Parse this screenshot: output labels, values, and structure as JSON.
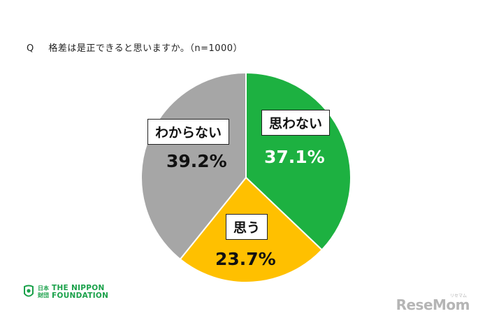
{
  "question": {
    "mark": "Q",
    "text": "格差は是正できると思いますか。（n=1000）"
  },
  "chart_data": {
    "type": "pie",
    "title": "",
    "start_angle_deg": 0,
    "direction": "clockwise",
    "slices": [
      {
        "label": "思わない",
        "value": 37.1,
        "value_label": "37.1%",
        "color": "#1db141",
        "value_color": "#ffffff"
      },
      {
        "label": "思う",
        "value": 23.7,
        "value_label": "23.7%",
        "color": "#ffc000",
        "value_color": "#111111"
      },
      {
        "label": "わからない",
        "value": 39.2,
        "value_label": "39.2%",
        "color": "#a6a6a6",
        "value_color": "#111111"
      }
    ]
  },
  "footer": {
    "logo_jp_line1": "日本",
    "logo_jp_line2": "財団",
    "logo_en_line1": "THE NIPPON",
    "logo_en_line2": "FOUNDATION",
    "logo_color": "#1aa14a",
    "watermark": "ReseMom",
    "watermark_sub": "リセマム"
  }
}
